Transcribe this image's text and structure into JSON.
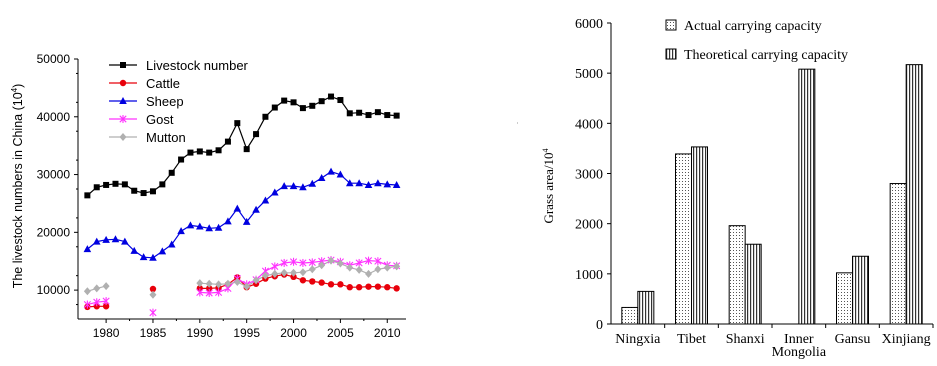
{
  "chart_data": [
    {
      "type": "line",
      "ylabel": "The livestock numbers in China (10⁴)",
      "ylabel_text": "The livestock numbers in China (10",
      "ylabel_sup": "4",
      "ylabel_close": ")",
      "xlim": [
        1977,
        2012
      ],
      "ylim": [
        5000,
        50000
      ],
      "x_ticks": [
        1980,
        1985,
        1990,
        1995,
        2000,
        2005,
        2010
      ],
      "y_ticks": [
        10000,
        20000,
        30000,
        40000,
        50000
      ],
      "legend_position": "top-left",
      "series": [
        {
          "name": "Livestock number",
          "color": "#000000",
          "marker": "square",
          "points": [
            [
              1978,
              26400
            ],
            [
              1979,
              27800
            ],
            [
              1980,
              28200
            ],
            [
              1981,
              28400
            ],
            [
              1982,
              28300
            ],
            [
              1983,
              27200
            ],
            [
              1984,
              26800
            ],
            [
              1985,
              27100
            ],
            [
              1986,
              28300
            ],
            [
              1987,
              30300
            ],
            [
              1988,
              32600
            ],
            [
              1989,
              33800
            ],
            [
              1990,
              34000
            ],
            [
              1991,
              33800
            ],
            [
              1992,
              34200
            ],
            [
              1993,
              35700
            ],
            [
              1994,
              38900
            ],
            [
              1995,
              34400
            ],
            [
              1996,
              37000
            ],
            [
              1997,
              40000
            ],
            [
              1998,
              41600
            ],
            [
              1999,
              42800
            ],
            [
              2000,
              42500
            ],
            [
              2001,
              41500
            ],
            [
              2002,
              41900
            ],
            [
              2003,
              42700
            ],
            [
              2004,
              43500
            ],
            [
              2005,
              42900
            ],
            [
              2006,
              40600
            ],
            [
              2007,
              40700
            ],
            [
              2008,
              40300
            ],
            [
              2009,
              40800
            ],
            [
              2010,
              40300
            ],
            [
              2011,
              40200
            ]
          ]
        },
        {
          "name": "Cattle",
          "color": "#e8000b",
          "marker": "circle",
          "points": [
            [
              1978,
              7100
            ],
            [
              1979,
              7200
            ],
            [
              1980,
              7200
            ],
            [
              1985,
              10200
            ],
            [
              1990,
              10300
            ],
            [
              1991,
              10300
            ],
            [
              1992,
              10400
            ],
            [
              1993,
              11000
            ],
            [
              1994,
              12200
            ],
            [
              1995,
              10500
            ],
            [
              1996,
              11100
            ],
            [
              1997,
              12000
            ],
            [
              1998,
              12400
            ],
            [
              1999,
              12700
            ],
            [
              2000,
              12300
            ],
            [
              2001,
              11700
            ],
            [
              2002,
              11500
            ],
            [
              2003,
              11300
            ],
            [
              2004,
              11000
            ],
            [
              2005,
              11000
            ],
            [
              2006,
              10500
            ],
            [
              2007,
              10500
            ],
            [
              2008,
              10600
            ],
            [
              2009,
              10600
            ],
            [
              2010,
              10500
            ],
            [
              2011,
              10300
            ]
          ]
        },
        {
          "name": "Sheep",
          "color": "#0000e0",
          "marker": "triangle",
          "points": [
            [
              1978,
              17100
            ],
            [
              1979,
              18400
            ],
            [
              1980,
              18700
            ],
            [
              1981,
              18800
            ],
            [
              1982,
              18400
            ],
            [
              1983,
              16800
            ],
            [
              1984,
              15700
            ],
            [
              1985,
              15600
            ],
            [
              1986,
              16700
            ],
            [
              1987,
              17900
            ],
            [
              1988,
              20200
            ],
            [
              1989,
              21200
            ],
            [
              1990,
              21000
            ],
            [
              1991,
              20700
            ],
            [
              1992,
              20800
            ],
            [
              1993,
              21900
            ],
            [
              1994,
              24100
            ],
            [
              1995,
              21800
            ],
            [
              1996,
              23900
            ],
            [
              1997,
              25500
            ],
            [
              1998,
              26900
            ],
            [
              1999,
              28000
            ],
            [
              2000,
              28000
            ],
            [
              2001,
              27800
            ],
            [
              2002,
              28400
            ],
            [
              2003,
              29400
            ],
            [
              2004,
              30500
            ],
            [
              2005,
              30000
            ],
            [
              2006,
              28500
            ],
            [
              2007,
              28500
            ],
            [
              2008,
              28200
            ],
            [
              2009,
              28500
            ],
            [
              2010,
              28300
            ],
            [
              2011,
              28200
            ]
          ]
        },
        {
          "name": "Gost",
          "color": "#ff33ff",
          "marker": "star",
          "points": [
            [
              1978,
              7500
            ],
            [
              1979,
              7900
            ],
            [
              1980,
              8100
            ],
            [
              1985,
              6100
            ],
            [
              1990,
              9600
            ],
            [
              1991,
              9500
            ],
            [
              1992,
              9600
            ],
            [
              1993,
              10300
            ],
            [
              1994,
              12000
            ],
            [
              1995,
              11000
            ],
            [
              1996,
              11800
            ],
            [
              1997,
              13300
            ],
            [
              1998,
              14100
            ],
            [
              1999,
              14700
            ],
            [
              2000,
              14900
            ],
            [
              2001,
              14700
            ],
            [
              2002,
              14800
            ],
            [
              2003,
              15000
            ],
            [
              2004,
              15200
            ],
            [
              2005,
              14900
            ],
            [
              2006,
              14300
            ],
            [
              2007,
              14700
            ],
            [
              2008,
              15100
            ],
            [
              2009,
              15000
            ],
            [
              2010,
              14300
            ],
            [
              2011,
              14200
            ]
          ]
        },
        {
          "name": "Mutton",
          "color": "#b0b0b0",
          "marker": "diamond",
          "points": [
            [
              1978,
              9800
            ],
            [
              1979,
              10300
            ],
            [
              1980,
              10700
            ],
            [
              1985,
              9200
            ],
            [
              1990,
              11200
            ],
            [
              1991,
              11100
            ],
            [
              1992,
              11000
            ],
            [
              1993,
              11100
            ],
            [
              1994,
              11400
            ],
            [
              1995,
              10600
            ],
            [
              1996,
              11700
            ],
            [
              1997,
              12500
            ],
            [
              1998,
              12800
            ],
            [
              1999,
              13000
            ],
            [
              2000,
              13000
            ],
            [
              2001,
              13100
            ],
            [
              2002,
              13600
            ],
            [
              2003,
              14300
            ],
            [
              2004,
              15100
            ],
            [
              2005,
              14600
            ],
            [
              2006,
              13900
            ],
            [
              2007,
              13500
            ],
            [
              2008,
              12800
            ],
            [
              2009,
              13600
            ],
            [
              2010,
              13900
            ],
            [
              2011,
              14100
            ]
          ]
        }
      ]
    },
    {
      "type": "bar",
      "ylabel": "Grass area/10⁴",
      "ylabel_text": "Grass area/10",
      "ylabel_sup": "4",
      "ylim": [
        0,
        6000
      ],
      "y_ticks": [
        0,
        1000,
        2000,
        3000,
        4000,
        5000,
        6000
      ],
      "categories": [
        "Ningxia",
        "Tibet",
        "Shanxi",
        "Inner Mongolia",
        "Gansu",
        "Xinjiang"
      ],
      "category_lines": [
        [
          "Ningxia"
        ],
        [
          "Tibet"
        ],
        [
          "Shanxi"
        ],
        [
          "Inner",
          "Mongolia"
        ],
        [
          "Gansu"
        ],
        [
          "Xinjiang"
        ]
      ],
      "legend_position": "top-left",
      "series": [
        {
          "name": "Actual carrying capacity",
          "pattern": "dots",
          "values": [
            330,
            3390,
            1960,
            0,
            1020,
            2800
          ]
        },
        {
          "name": "Theoretical carrying capacity",
          "pattern": "vlines",
          "values": [
            650,
            3530,
            1590,
            5080,
            1350,
            5170
          ]
        }
      ]
    }
  ]
}
